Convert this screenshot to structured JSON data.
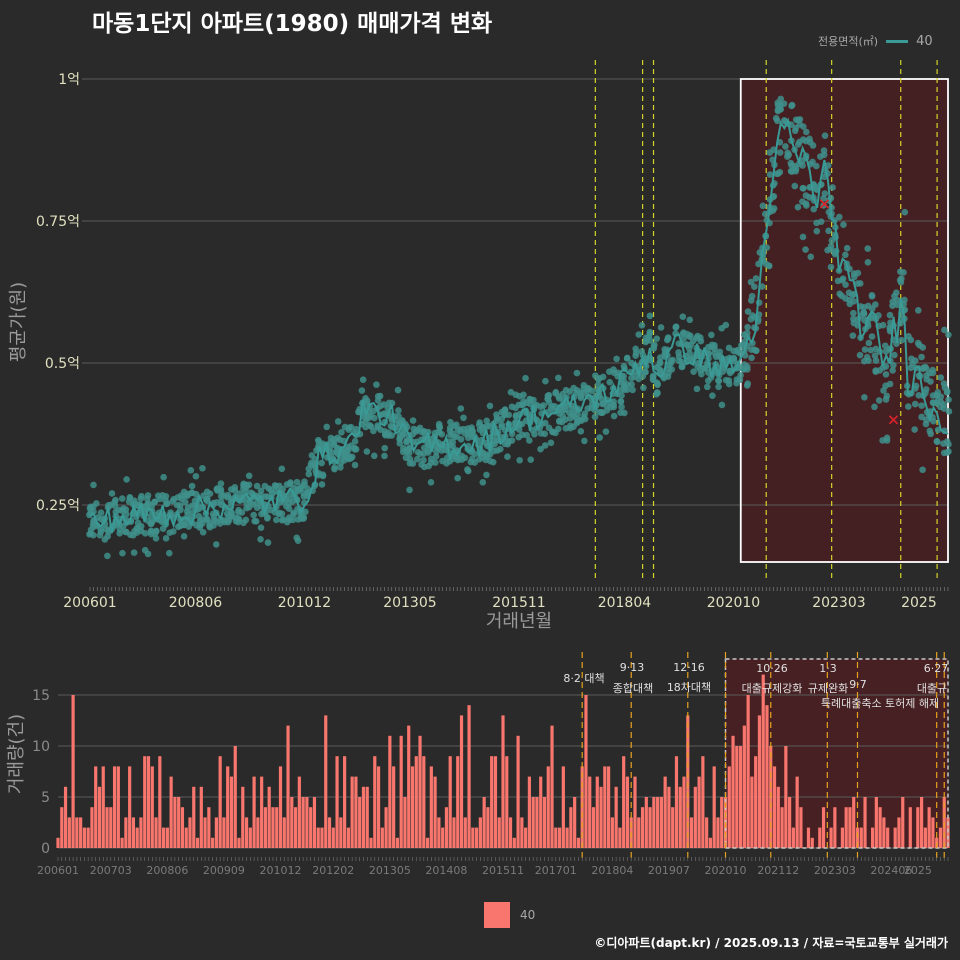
{
  "title": "마동1단지 아파트(1980) 매매가격 변화",
  "footer": "©디아파트(dapt.kr) / 2025.09.13 / 자료=국토교통부 실거래가",
  "legend_top": {
    "title": "전용면적(㎡)",
    "label": "40"
  },
  "legend_bottom": {
    "label": "40"
  },
  "colors": {
    "background": "#2a2a2a",
    "line": "#3a9a96",
    "points": "#3f8f8b",
    "bars": "#f8766d",
    "policy_line_top": "#d4d42a",
    "policy_line_bottom": "#e6a21f",
    "highlight": "#4a1f22",
    "outlier": "#e0222a"
  },
  "chart_data": [
    {
      "type": "line",
      "title": "마동1단지 아파트(1980) 매매가격 변화",
      "xlabel": "거래년월",
      "ylabel": "평균가(원)",
      "x_range": [
        "200601",
        "202509"
      ],
      "x_ticks": [
        "200601",
        "200806",
        "201012",
        "201305",
        "201511",
        "201804",
        "202010",
        "202303",
        "2025"
      ],
      "y_ticks": [
        "0.25억",
        "0.5억",
        "0.75억",
        "1억"
      ],
      "y_tick_values": [
        0.25,
        0.5,
        0.75,
        1.0
      ],
      "y_unit": "억",
      "ylim": [
        0.12,
        1.05
      ],
      "grid": true,
      "legend": "top-right",
      "series": [
        {
          "name": "40",
          "color": "#3a9a96",
          "anchors": [
            [
              "200601",
              0.22
            ],
            [
              "200701",
              0.23
            ],
            [
              "200806",
              0.24
            ],
            [
              "200901",
              0.25
            ],
            [
              "201012",
              0.26
            ],
            [
              "201101",
              0.28
            ],
            [
              "201104",
              0.33
            ],
            [
              "201201",
              0.36
            ],
            [
              "201204",
              0.42
            ],
            [
              "201301",
              0.4
            ],
            [
              "201305",
              0.35
            ],
            [
              "201501",
              0.36
            ],
            [
              "201511",
              0.4
            ],
            [
              "201701",
              0.42
            ],
            [
              "201712",
              0.45
            ],
            [
              "201804",
              0.47
            ],
            [
              "201808",
              0.5
            ],
            [
              "201811",
              0.52
            ],
            [
              "201901",
              0.48
            ],
            [
              "201906",
              0.53
            ],
            [
              "202001",
              0.51
            ],
            [
              "202006",
              0.49
            ],
            [
              "202012",
              0.5
            ],
            [
              "202103",
              0.55
            ],
            [
              "202108",
              0.74
            ],
            [
              "202110",
              0.9
            ],
            [
              "202201",
              0.9
            ],
            [
              "202203",
              0.88
            ],
            [
              "202209",
              0.8
            ],
            [
              "202211",
              0.83
            ],
            [
              "202303",
              0.7
            ],
            [
              "202306",
              0.62
            ],
            [
              "202309",
              0.58
            ],
            [
              "202401",
              0.55
            ],
            [
              "202404",
              0.5
            ],
            [
              "202409",
              0.62
            ],
            [
              "202410",
              0.48
            ],
            [
              "202501",
              0.47
            ],
            [
              "202505",
              0.42
            ],
            [
              "202509",
              0.4
            ]
          ]
        }
      ],
      "policy_lines": [
        "201708",
        "201809",
        "201812",
        "202107",
        "202301",
        "202408",
        "202506"
      ],
      "highlight_range": [
        "202012",
        "202509"
      ],
      "outliers": [
        [
          0.78,
          "202211"
        ],
        [
          0.4,
          "202406"
        ]
      ]
    },
    {
      "type": "bar",
      "xlabel": "",
      "ylabel": "거래량(건)",
      "x_ticks": [
        "200601",
        "200703",
        "200806",
        "200909",
        "201012",
        "201202",
        "201305",
        "201408",
        "201511",
        "201701",
        "201804",
        "201907",
        "202010",
        "202112",
        "202303",
        "202406",
        "2025"
      ],
      "y_ticks": [
        0,
        5,
        10,
        15
      ],
      "ylim": [
        0,
        19
      ],
      "grid": true,
      "series": [
        {
          "name": "40",
          "color": "#f8766d"
        }
      ],
      "policy_lines": [
        "201708",
        "201809",
        "201912",
        "202010",
        "202110",
        "202301",
        "202309",
        "202506",
        "202508"
      ],
      "policy_labels": [
        "8·2 대책",
        "9·13",
        "종합대책",
        "12·16",
        "18차대책",
        "10·26",
        "대출규제강화",
        "1·3",
        "규제완화",
        "9·7",
        "특례대출축소 토허제 해제",
        "6·27",
        "대출규"
      ],
      "highlight_range": [
        "202010",
        "202509"
      ]
    }
  ]
}
